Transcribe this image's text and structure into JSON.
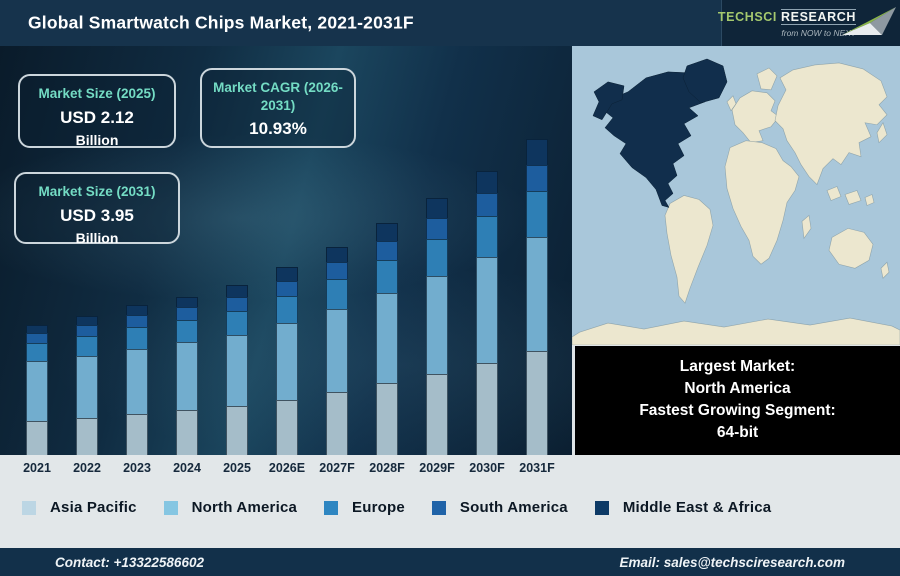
{
  "header": {
    "title": "Global Smartwatch Chips Market, 2021-2031F",
    "logo": {
      "brand_primary": "TechSci",
      "brand_secondary": "Research",
      "tagline": "from NOW to NEXT"
    }
  },
  "stat_boxes": [
    {
      "label": "Market Size (2025)",
      "value": "USD 2.12",
      "unit": "Billion"
    },
    {
      "label": "Market CAGR (2026-2031)",
      "value": "10.93%",
      "unit": ""
    },
    {
      "label": "Market Size (2031)",
      "value": "USD 3.95",
      "unit": "Billion"
    }
  ],
  "chart_data": {
    "type": "bar",
    "subtype": "stacked",
    "unit": "USD Billion",
    "categories": [
      "2021",
      "2022",
      "2023",
      "2024",
      "2025",
      "2026E",
      "2027F",
      "2028F",
      "2029F",
      "2030F",
      "2031F"
    ],
    "series": [
      {
        "name": "Asia Pacific",
        "color": "#a5bdc9",
        "values": [
          0.42,
          0.46,
          0.51,
          0.56,
          0.61,
          0.69,
          0.79,
          0.9,
          1.01,
          1.15,
          1.3
        ]
      },
      {
        "name": "North America",
        "color": "#72adce",
        "values": [
          0.75,
          0.78,
          0.81,
          0.85,
          0.89,
          0.96,
          1.04,
          1.13,
          1.22,
          1.32,
          1.43
        ]
      },
      {
        "name": "Europe",
        "color": "#2e7fb5",
        "values": [
          0.23,
          0.25,
          0.27,
          0.28,
          0.3,
          0.34,
          0.37,
          0.41,
          0.46,
          0.51,
          0.57
        ]
      },
      {
        "name": "South America",
        "color": "#1d5d9e",
        "values": [
          0.13,
          0.14,
          0.15,
          0.16,
          0.17,
          0.19,
          0.21,
          0.24,
          0.26,
          0.29,
          0.33
        ]
      },
      {
        "name": "Middle East & Africa",
        "color": "#0e355e",
        "values": [
          0.1,
          0.11,
          0.12,
          0.13,
          0.15,
          0.17,
          0.19,
          0.22,
          0.25,
          0.28,
          0.32
        ]
      }
    ],
    "totals": [
      1.63,
      1.74,
      1.86,
      1.98,
      2.12,
      2.35,
      2.6,
      2.9,
      3.2,
      3.55,
      3.95
    ],
    "ylim": [
      0,
      3.95
    ],
    "y_axis_visible": false,
    "grid": false,
    "legend_position": "bottom"
  },
  "legend": {
    "items": [
      {
        "label": "Asia Pacific",
        "color": "#bcd6e4"
      },
      {
        "label": "North America",
        "color": "#85c6e2"
      },
      {
        "label": "Europe",
        "color": "#2e86c1"
      },
      {
        "label": "South America",
        "color": "#1f63a8"
      },
      {
        "label": "Middle East & Africa",
        "color": "#0d3a66"
      }
    ]
  },
  "map_panel": {
    "ocean_color": "#a9c7da",
    "land_color": "#ece7cf",
    "highlight_color": "#112e4c",
    "highlighted_region": "North America"
  },
  "info_box": {
    "lines": [
      "Largest Market:",
      "North America",
      "Fastest Growing Segment:",
      "64-bit"
    ]
  },
  "footer": {
    "contact": "Contact: +13322586602",
    "email": "Email: sales@techsciresearch.com"
  }
}
